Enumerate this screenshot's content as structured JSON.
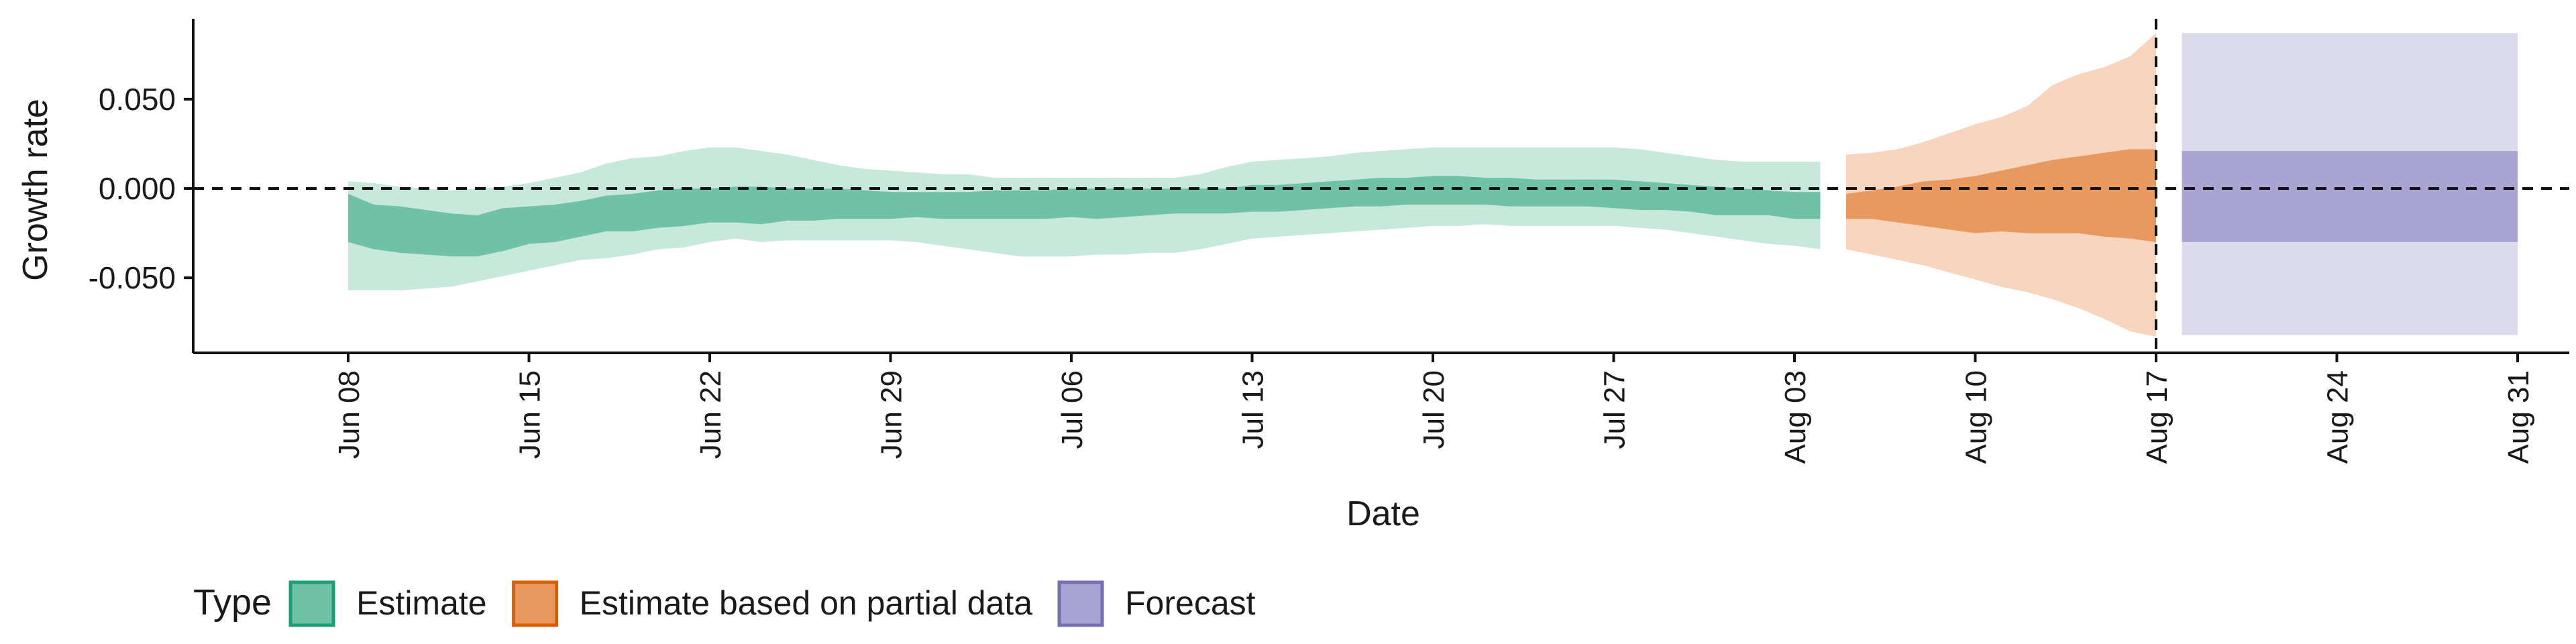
{
  "chart_data": {
    "type": "area",
    "ylabel": "Growth rate",
    "xlabel": "Date",
    "ylim": [
      -0.092,
      0.095
    ],
    "xlim": [
      "2020-06-02",
      "2020-09-02"
    ],
    "y_ticks": [
      -0.05,
      0.0,
      0.05
    ],
    "y_tick_labels": [
      "-0.050",
      "0.000",
      "0.050"
    ],
    "x_ticks": [
      "2020-06-08",
      "2020-06-15",
      "2020-06-22",
      "2020-06-29",
      "2020-07-06",
      "2020-07-13",
      "2020-07-20",
      "2020-07-27",
      "2020-08-03",
      "2020-08-10",
      "2020-08-17",
      "2020-08-24",
      "2020-08-31"
    ],
    "x_tick_labels": [
      "Jun 08",
      "Jun 15",
      "Jun 22",
      "Jun 29",
      "Jul 06",
      "Jul 13",
      "Jul 20",
      "Jul 27",
      "Aug 03",
      "Aug 10",
      "Aug 17",
      "Aug 24",
      "Aug 31"
    ],
    "reference_lines": {
      "horizontal_y": 0.0,
      "vertical_x": "2020-08-17"
    },
    "grid": false,
    "legend": {
      "title": "Type",
      "position": "bottom-left",
      "items": [
        {
          "label": "Estimate",
          "fill": "#6fc2a6",
          "border": "#1b9e77"
        },
        {
          "label": "Estimate based on partial data",
          "fill": "#e8995f",
          "border": "#d95f02"
        },
        {
          "label": "Forecast",
          "fill": "#a9a4d2",
          "border": "#7570b3"
        }
      ]
    },
    "series": [
      {
        "name": "Estimate",
        "inner_color": "#6fc2a6",
        "outer_color": "#c8e8dc",
        "x": [
          "2020-06-08",
          "2020-06-09",
          "2020-06-10",
          "2020-06-11",
          "2020-06-12",
          "2020-06-13",
          "2020-06-14",
          "2020-06-15",
          "2020-06-16",
          "2020-06-17",
          "2020-06-18",
          "2020-06-19",
          "2020-06-20",
          "2020-06-21",
          "2020-06-22",
          "2020-06-23",
          "2020-06-24",
          "2020-06-25",
          "2020-06-26",
          "2020-06-27",
          "2020-06-28",
          "2020-06-29",
          "2020-06-30",
          "2020-07-01",
          "2020-07-02",
          "2020-07-03",
          "2020-07-04",
          "2020-07-05",
          "2020-07-06",
          "2020-07-07",
          "2020-07-08",
          "2020-07-09",
          "2020-07-10",
          "2020-07-11",
          "2020-07-12",
          "2020-07-13",
          "2020-07-14",
          "2020-07-15",
          "2020-07-16",
          "2020-07-17",
          "2020-07-18",
          "2020-07-19",
          "2020-07-20",
          "2020-07-21",
          "2020-07-22",
          "2020-07-23",
          "2020-07-24",
          "2020-07-25",
          "2020-07-26",
          "2020-07-27",
          "2020-07-28",
          "2020-07-29",
          "2020-07-30",
          "2020-07-31",
          "2020-08-01",
          "2020-08-02",
          "2020-08-03",
          "2020-08-04"
        ],
        "lower_90": [
          -0.057,
          -0.057,
          -0.057,
          -0.056,
          -0.055,
          -0.052,
          -0.049,
          -0.046,
          -0.043,
          -0.04,
          -0.039,
          -0.037,
          -0.034,
          -0.033,
          -0.03,
          -0.028,
          -0.03,
          -0.029,
          -0.029,
          -0.029,
          -0.029,
          -0.029,
          -0.03,
          -0.032,
          -0.034,
          -0.036,
          -0.038,
          -0.038,
          -0.038,
          -0.037,
          -0.037,
          -0.036,
          -0.036,
          -0.034,
          -0.031,
          -0.028,
          -0.027,
          -0.026,
          -0.025,
          -0.024,
          -0.023,
          -0.022,
          -0.021,
          -0.021,
          -0.02,
          -0.021,
          -0.021,
          -0.021,
          -0.021,
          -0.021,
          -0.022,
          -0.023,
          -0.025,
          -0.027,
          -0.029,
          -0.031,
          -0.032,
          -0.034
        ],
        "lower_50": [
          -0.03,
          -0.034,
          -0.036,
          -0.037,
          -0.038,
          -0.038,
          -0.035,
          -0.031,
          -0.03,
          -0.027,
          -0.024,
          -0.024,
          -0.022,
          -0.021,
          -0.019,
          -0.019,
          -0.02,
          -0.018,
          -0.018,
          -0.017,
          -0.017,
          -0.017,
          -0.016,
          -0.017,
          -0.017,
          -0.017,
          -0.017,
          -0.017,
          -0.016,
          -0.017,
          -0.016,
          -0.015,
          -0.014,
          -0.014,
          -0.014,
          -0.013,
          -0.013,
          -0.012,
          -0.011,
          -0.01,
          -0.01,
          -0.009,
          -0.009,
          -0.009,
          -0.009,
          -0.01,
          -0.01,
          -0.01,
          -0.01,
          -0.011,
          -0.012,
          -0.012,
          -0.013,
          -0.015,
          -0.015,
          -0.015,
          -0.017,
          -0.017
        ],
        "upper_50": [
          -0.003,
          -0.009,
          -0.01,
          -0.012,
          -0.014,
          -0.015,
          -0.011,
          -0.01,
          -0.009,
          -0.007,
          -0.004,
          -0.003,
          -0.001,
          0.0,
          0.0,
          0.001,
          0.001,
          0.0,
          0.0,
          0.0,
          -0.001,
          -0.002,
          -0.002,
          -0.002,
          -0.002,
          -0.001,
          -0.001,
          -0.001,
          0.0,
          0.0,
          0.0,
          0.0,
          0.0,
          0.0,
          0.0,
          0.002,
          0.002,
          0.003,
          0.004,
          0.005,
          0.006,
          0.006,
          0.007,
          0.007,
          0.006,
          0.006,
          0.005,
          0.005,
          0.005,
          0.005,
          0.004,
          0.003,
          0.002,
          0.001,
          0.0,
          -0.001,
          -0.002,
          -0.002
        ],
        "upper_90": [
          0.004,
          0.003,
          0.001,
          0.0,
          -0.001,
          0.0,
          0.001,
          0.003,
          0.006,
          0.009,
          0.014,
          0.017,
          0.018,
          0.021,
          0.023,
          0.023,
          0.021,
          0.019,
          0.016,
          0.013,
          0.011,
          0.01,
          0.009,
          0.008,
          0.008,
          0.006,
          0.006,
          0.006,
          0.006,
          0.006,
          0.006,
          0.006,
          0.006,
          0.008,
          0.012,
          0.015,
          0.016,
          0.017,
          0.018,
          0.02,
          0.021,
          0.022,
          0.023,
          0.023,
          0.023,
          0.023,
          0.023,
          0.023,
          0.023,
          0.023,
          0.022,
          0.02,
          0.018,
          0.016,
          0.015,
          0.015,
          0.015,
          0.015
        ]
      },
      {
        "name": "Estimate based on partial data",
        "inner_color": "#e8995f",
        "outer_color": "#f7d5bf",
        "x": [
          "2020-08-05",
          "2020-08-06",
          "2020-08-07",
          "2020-08-08",
          "2020-08-09",
          "2020-08-10",
          "2020-08-11",
          "2020-08-12",
          "2020-08-13",
          "2020-08-14",
          "2020-08-15",
          "2020-08-16",
          "2020-08-17"
        ],
        "lower_90": [
          -0.034,
          -0.037,
          -0.04,
          -0.043,
          -0.047,
          -0.051,
          -0.055,
          -0.058,
          -0.062,
          -0.067,
          -0.073,
          -0.08,
          -0.083
        ],
        "lower_50": [
          -0.017,
          -0.017,
          -0.019,
          -0.021,
          -0.023,
          -0.025,
          -0.024,
          -0.025,
          -0.025,
          -0.025,
          -0.027,
          -0.028,
          -0.03
        ],
        "upper_50": [
          -0.003,
          -0.001,
          0.001,
          0.004,
          0.005,
          0.007,
          0.01,
          0.013,
          0.016,
          0.018,
          0.02,
          0.022,
          0.022
        ],
        "upper_90": [
          0.019,
          0.02,
          0.022,
          0.026,
          0.031,
          0.036,
          0.04,
          0.046,
          0.058,
          0.064,
          0.068,
          0.074,
          0.087
        ]
      },
      {
        "name": "Forecast",
        "inner_color": "#a9a4d2",
        "outer_color": "#dcdbec",
        "x": [
          "2020-08-18",
          "2020-08-31"
        ],
        "lower_90": [
          -0.082,
          -0.082
        ],
        "lower_50": [
          -0.03,
          -0.03
        ],
        "upper_50": [
          0.021,
          0.021
        ],
        "upper_90": [
          0.087,
          0.087
        ]
      }
    ]
  }
}
